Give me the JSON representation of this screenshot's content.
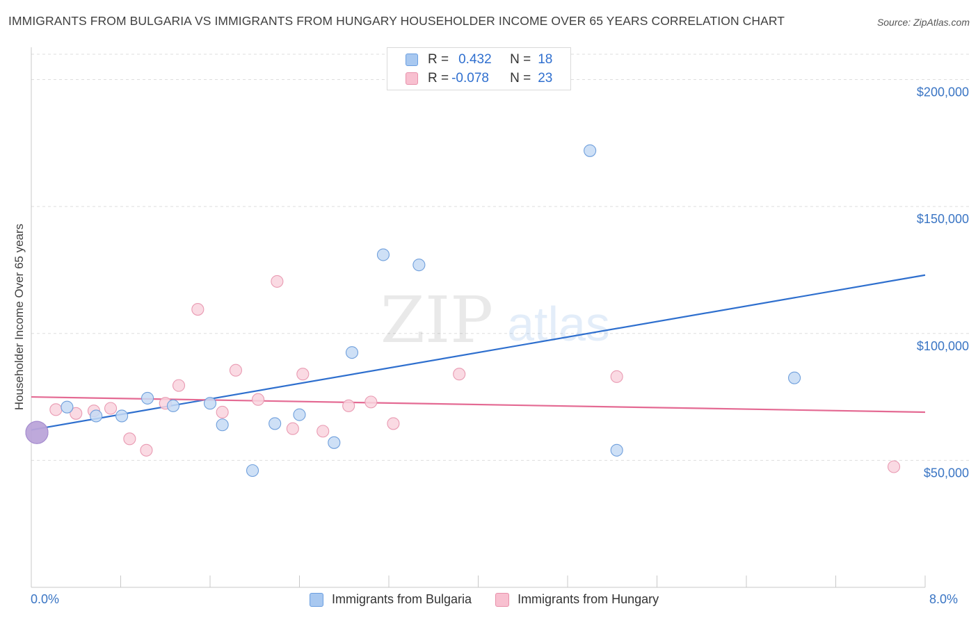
{
  "title": "IMMIGRANTS FROM BULGARIA VS IMMIGRANTS FROM HUNGARY HOUSEHOLDER INCOME OVER 65 YEARS CORRELATION CHART",
  "source": "Source: ZipAtlas.com",
  "watermark": {
    "zip": "ZIP",
    "atlas": "atlas"
  },
  "legend": {
    "r_label": "R =",
    "n_label": "N =",
    "rows": [
      {
        "r": "0.432",
        "n": "18",
        "color": "#a8c8f0",
        "border": "#6a9ee0"
      },
      {
        "r": "-0.078",
        "n": "23",
        "color": "#f8c0d0",
        "border": "#e890aa"
      }
    ]
  },
  "colors": {
    "blue_fill": "#c5dbf5",
    "blue_stroke": "#6f9fdc",
    "blue_line": "#2e6fce",
    "pink_fill": "#f9d3de",
    "pink_stroke": "#e99ab2",
    "pink_line": "#e46a93",
    "tick_label": "#3a75c4",
    "grid": "#dddddd"
  },
  "chart_data": {
    "type": "scatter",
    "title": "IMMIGRANTS FROM BULGARIA VS IMMIGRANTS FROM HUNGARY HOUSEHOLDER INCOME OVER 65 YEARS CORRELATION CHART",
    "xlabel": "",
    "ylabel": "Householder Income Over 65 years",
    "xlim": [
      0,
      8.0
    ],
    "ylim": [
      0,
      210000
    ],
    "x_tick_labels": {
      "min": "0.0%",
      "max": "8.0%"
    },
    "y_ticks": [
      {
        "value": 50000,
        "label": "$50,000"
      },
      {
        "value": 100000,
        "label": "$100,000"
      },
      {
        "value": 150000,
        "label": "$150,000"
      },
      {
        "value": 200000,
        "label": "$200,000"
      }
    ],
    "series": [
      {
        "name": "Immigrants from Bulgaria",
        "color": "blue",
        "trend": {
          "x": [
            0.0,
            8.0
          ],
          "y": [
            62000,
            123000
          ]
        },
        "points": [
          [
            0.32,
            71000
          ],
          [
            0.58,
            67500
          ],
          [
            0.81,
            67500
          ],
          [
            1.04,
            74500
          ],
          [
            1.27,
            71500
          ],
          [
            1.6,
            72500
          ],
          [
            1.71,
            64000
          ],
          [
            1.98,
            46000
          ],
          [
            2.18,
            64500
          ],
          [
            2.4,
            68000
          ],
          [
            2.71,
            57000
          ],
          [
            2.87,
            92500
          ],
          [
            3.15,
            131000
          ],
          [
            3.47,
            127000
          ],
          [
            5.0,
            172000
          ],
          [
            5.24,
            54000
          ],
          [
            6.83,
            82500
          ],
          [
            0.05,
            61000
          ]
        ]
      },
      {
        "name": "Immigrants from Hungary",
        "color": "pink",
        "trend": {
          "x": [
            0.0,
            8.0
          ],
          "y": [
            75000,
            69000
          ]
        },
        "points": [
          [
            0.22,
            70000
          ],
          [
            0.4,
            68500
          ],
          [
            0.56,
            69500
          ],
          [
            0.71,
            70500
          ],
          [
            0.88,
            58500
          ],
          [
            1.03,
            54000
          ],
          [
            1.2,
            72500
          ],
          [
            1.32,
            79500
          ],
          [
            1.49,
            109500
          ],
          [
            1.71,
            69000
          ],
          [
            1.83,
            85500
          ],
          [
            2.03,
            74000
          ],
          [
            2.2,
            120500
          ],
          [
            2.34,
            62500
          ],
          [
            2.43,
            84000
          ],
          [
            2.61,
            61500
          ],
          [
            2.84,
            71500
          ],
          [
            3.04,
            73000
          ],
          [
            3.24,
            64500
          ],
          [
            3.83,
            84000
          ],
          [
            5.24,
            83000
          ],
          [
            7.72,
            47500
          ],
          [
            0.05,
            61000
          ]
        ]
      }
    ]
  },
  "bottom_legend": [
    "Immigrants from Bulgaria",
    "Immigrants from Hungary"
  ]
}
